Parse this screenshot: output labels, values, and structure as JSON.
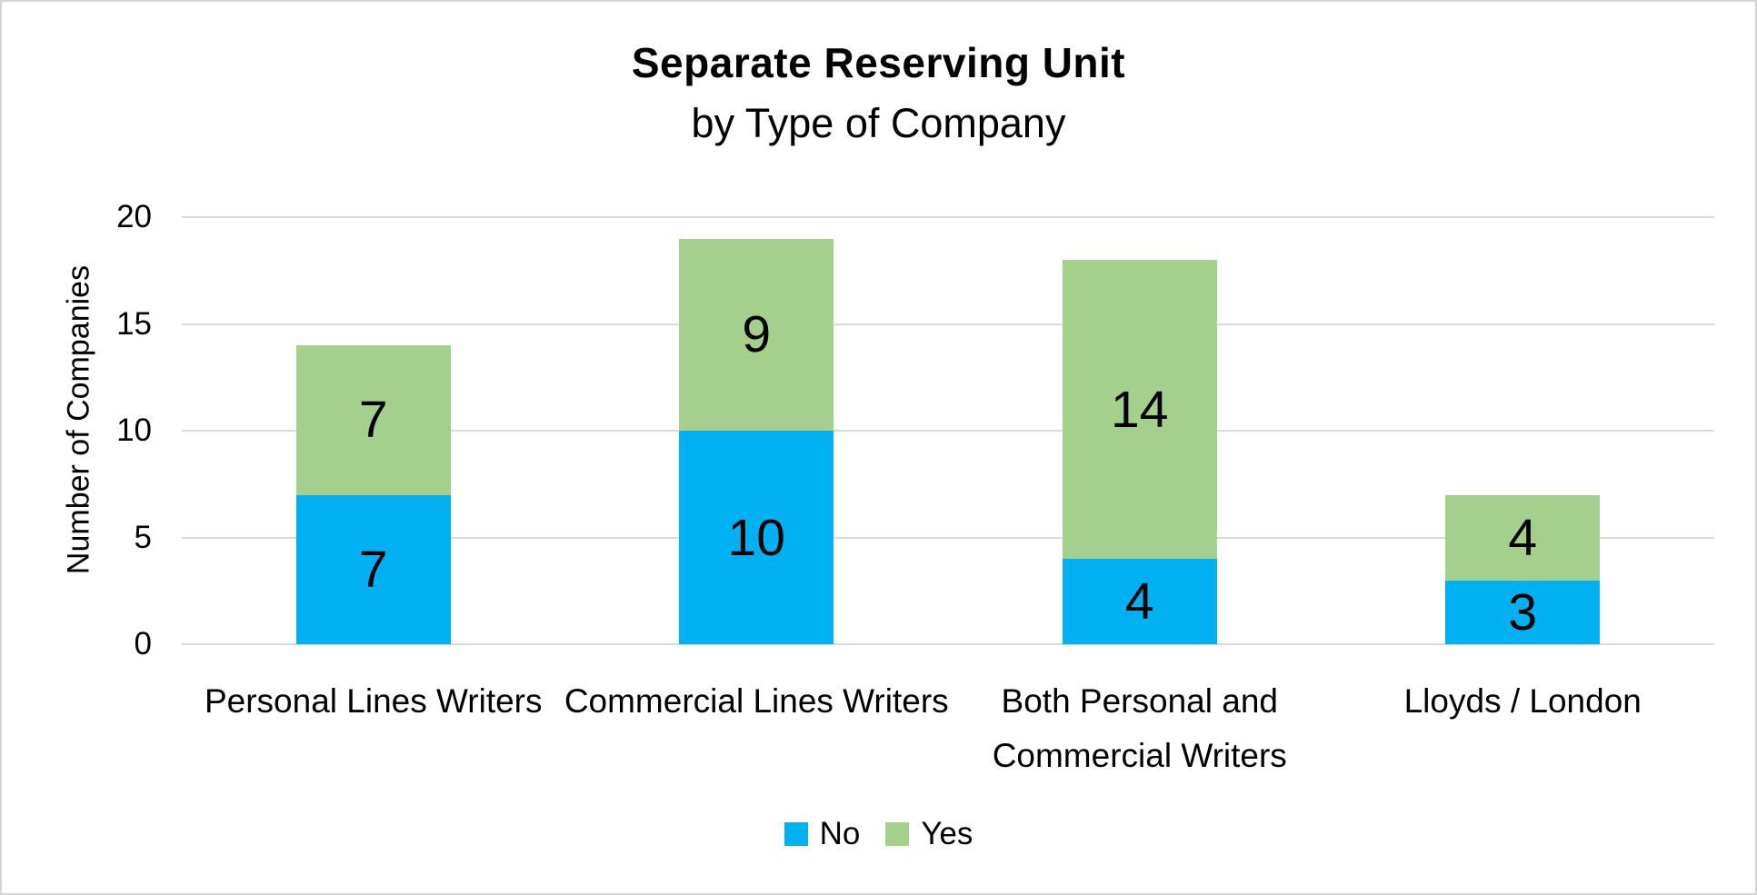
{
  "frame": {
    "background": "#ffffff",
    "border_color": "#d4d4d4"
  },
  "chart_data": {
    "type": "bar",
    "stacked": true,
    "title": "Separate Reserving Unit",
    "subtitle": "by Type of Company",
    "ylabel": "Number of Companies",
    "xlabel": "",
    "categories": [
      "Personal Lines Writers",
      "Commercial Lines Writers",
      "Both Personal and Commercial Writers",
      "Lloyds / London"
    ],
    "series": [
      {
        "name": "No",
        "color": "#00b0f0",
        "values": [
          7,
          10,
          4,
          3
        ]
      },
      {
        "name": "Yes",
        "color": "#a5cf8c",
        "values": [
          7,
          9,
          14,
          4
        ]
      }
    ],
    "totals": [
      14,
      19,
      18,
      7
    ],
    "ylim": [
      0,
      20
    ],
    "yticks": [
      0,
      5,
      10,
      15,
      20
    ],
    "grid": true,
    "gridline_color": "#d9d9d9",
    "data_labels": true,
    "legend_position": "bottom-center",
    "text_color": "#000000"
  }
}
